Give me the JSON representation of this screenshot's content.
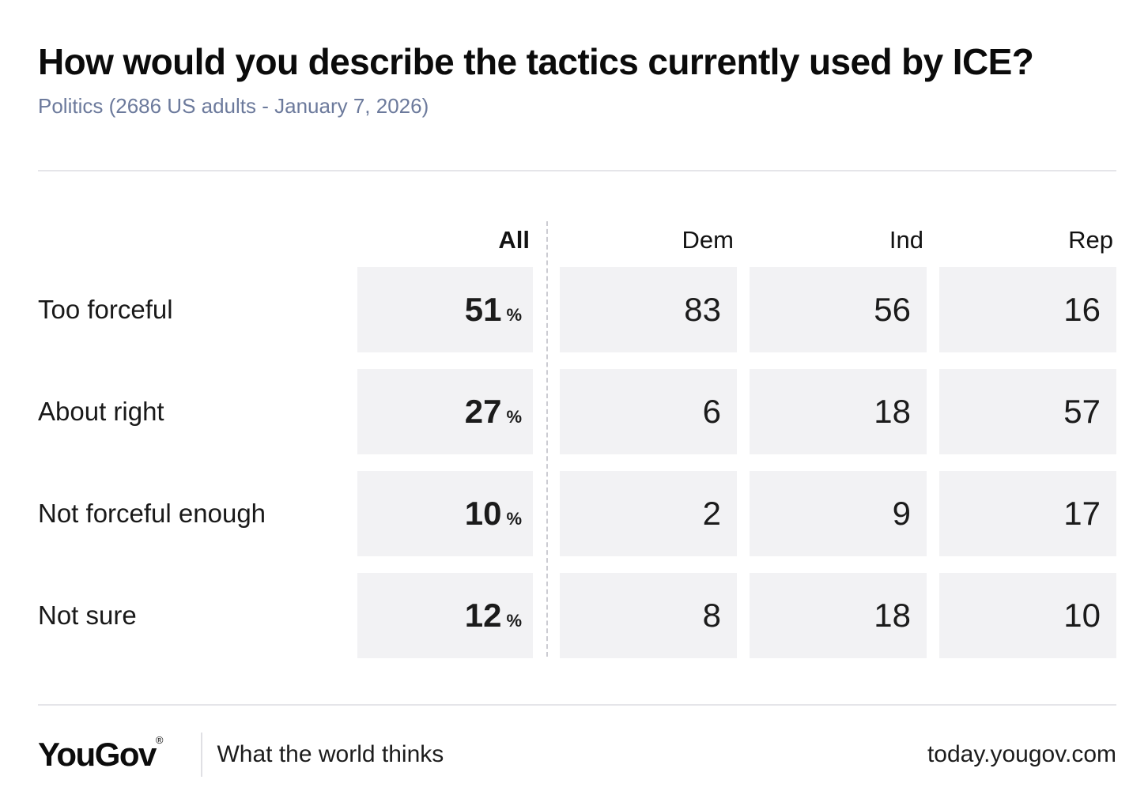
{
  "chart_data": {
    "type": "table",
    "title": "How would you describe the tactics currently used by ICE?",
    "subtitle": "Politics (2686 US adults - January 7, 2026)",
    "columns": [
      "All",
      "Dem",
      "Ind",
      "Rep"
    ],
    "unit": "%",
    "rows": [
      {
        "label": "Too forceful",
        "values": [
          51,
          83,
          56,
          16
        ]
      },
      {
        "label": "About right",
        "values": [
          27,
          6,
          18,
          57
        ]
      },
      {
        "label": "Not forceful enough",
        "values": [
          10,
          2,
          9,
          17
        ]
      },
      {
        "label": "Not sure",
        "values": [
          12,
          8,
          18,
          10
        ]
      }
    ]
  },
  "footer": {
    "logo_text": "YouGov",
    "registered_symbol": "®",
    "tagline": "What the world thinks",
    "url": "today.yougov.com"
  },
  "colors": {
    "background": "#ffffff",
    "title_text": "#0b0b0b",
    "subtitle_text": "#6c7a9c",
    "cell_background": "#f2f2f4",
    "body_text": "#161616",
    "rule": "#e5e5e9",
    "dashed_divider": "#ccccd2"
  }
}
